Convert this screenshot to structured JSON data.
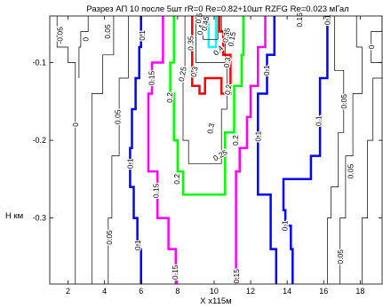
{
  "chart_data": {
    "type": "contour",
    "title": "Разрез АП 10 после 5шт rR=0 Re=0.82+10шт RZFG  Re=0.023 мГал",
    "xlabel": "X  x115м",
    "ylabel": "H  км",
    "xlim": [
      1,
      19.2
    ],
    "ylim": [
      -0.385,
      -0.04
    ],
    "xticks": [
      2,
      4,
      6,
      8,
      10,
      12,
      14,
      16,
      18
    ],
    "yticks": [
      -0.1,
      -0.2,
      -0.3
    ],
    "ytick_labels": [
      "-0.1",
      "-0.2",
      "-0.3"
    ],
    "grid": false,
    "levels": [
      {
        "value": "0.05",
        "color": "#000000",
        "width": 0.8
      },
      {
        "value": "0.1",
        "color": "#0000ff",
        "width": 2.5
      },
      {
        "value": "0.15",
        "color": "#ff00ff",
        "width": 2.5
      },
      {
        "value": "0.2",
        "color": "#00ff00",
        "width": 2.5
      },
      {
        "value": "0.25",
        "color": "#000000",
        "width": 0.8
      },
      {
        "value": "0.3",
        "color": "#ff0000",
        "width": 2.5
      },
      {
        "value": "0.35",
        "color": "#000000",
        "width": 0.8
      },
      {
        "value": "0.4",
        "color": "#000000",
        "width": 0.8
      },
      {
        "value": "0.45",
        "color": "#000000",
        "width": 0.8
      },
      {
        "value": "0.5",
        "color": "#00ffff",
        "width": 2.5
      }
    ],
    "contours": [
      {
        "level": "0",
        "color": "#000000",
        "width": 0.7,
        "points": [
          [
            1.4,
            -0.04
          ],
          [
            1.4,
            -0.08
          ],
          [
            2.0,
            -0.08
          ],
          [
            2.0,
            -0.1
          ],
          [
            2.4,
            -0.1
          ],
          [
            2.4,
            -0.385
          ]
        ]
      },
      {
        "level": "0",
        "color": "#000000",
        "width": 0.7,
        "points": [
          [
            3.1,
            -0.04
          ],
          [
            3.1,
            -0.06
          ],
          [
            2.7,
            -0.06
          ],
          [
            2.7,
            -0.08
          ],
          [
            2.6,
            -0.08
          ],
          [
            2.6,
            -0.12
          ]
        ]
      },
      {
        "level": "0.05",
        "color": "#000000",
        "width": 0.7,
        "points": [
          [
            4.5,
            -0.04
          ],
          [
            4.5,
            -0.09
          ],
          [
            3.9,
            -0.09
          ],
          [
            3.9,
            -0.14
          ],
          [
            3.3,
            -0.14
          ],
          [
            3.3,
            -0.385
          ]
        ]
      },
      {
        "level": "0.05",
        "color": "#000000",
        "width": 0.7,
        "points": [
          [
            5.3,
            -0.04
          ],
          [
            5.3,
            -0.12
          ],
          [
            4.8,
            -0.12
          ],
          [
            4.8,
            -0.22
          ],
          [
            4.4,
            -0.22
          ],
          [
            4.4,
            -0.3
          ],
          [
            4.2,
            -0.3
          ],
          [
            4.2,
            -0.385
          ]
        ]
      },
      {
        "level": "0.1",
        "color": "#0000ff",
        "width": 2.5,
        "points": [
          [
            6.0,
            -0.04
          ],
          [
            6.0,
            -0.08
          ],
          [
            5.9,
            -0.08
          ],
          [
            5.9,
            -0.12
          ],
          [
            5.7,
            -0.12
          ],
          [
            5.7,
            -0.16
          ],
          [
            5.5,
            -0.16
          ],
          [
            5.5,
            -0.21
          ],
          [
            5.4,
            -0.21
          ],
          [
            5.4,
            -0.26
          ],
          [
            5.6,
            -0.26
          ],
          [
            5.6,
            -0.3
          ],
          [
            5.8,
            -0.3
          ],
          [
            5.8,
            -0.34
          ],
          [
            6.0,
            -0.34
          ],
          [
            6.0,
            -0.385
          ]
        ]
      },
      {
        "level": "0.15",
        "color": "#ff00ff",
        "width": 2.5,
        "points": [
          [
            7.2,
            -0.04
          ],
          [
            7.2,
            -0.1
          ],
          [
            6.6,
            -0.1
          ],
          [
            6.6,
            -0.14
          ],
          [
            6.4,
            -0.14
          ],
          [
            6.4,
            -0.24
          ],
          [
            6.9,
            -0.24
          ],
          [
            6.9,
            -0.3
          ],
          [
            7.5,
            -0.3
          ],
          [
            7.5,
            -0.34
          ],
          [
            7.9,
            -0.34
          ],
          [
            7.9,
            -0.385
          ]
        ]
      },
      {
        "level": "0.2",
        "color": "#00ff00",
        "width": 2.5,
        "points": [
          [
            7.8,
            -0.04
          ],
          [
            7.8,
            -0.1
          ],
          [
            7.6,
            -0.1
          ],
          [
            7.6,
            -0.14
          ],
          [
            7.8,
            -0.14
          ],
          [
            7.8,
            -0.2
          ],
          [
            8.0,
            -0.2
          ],
          [
            8.0,
            -0.24
          ],
          [
            8.3,
            -0.24
          ],
          [
            8.3,
            -0.27
          ],
          [
            10.6,
            -0.27
          ],
          [
            10.6,
            -0.19
          ],
          [
            11.1,
            -0.19
          ],
          [
            11.1,
            -0.13
          ],
          [
            11.5,
            -0.13
          ],
          [
            11.5,
            -0.09
          ],
          [
            11.6,
            -0.09
          ],
          [
            11.6,
            -0.04
          ]
        ]
      },
      {
        "level": "0.3",
        "color": "#ff0000",
        "width": 2.5,
        "points": [
          [
            8.8,
            -0.04
          ],
          [
            8.8,
            -0.13
          ],
          [
            9.2,
            -0.13
          ],
          [
            9.2,
            -0.14
          ],
          [
            9.5,
            -0.14
          ],
          [
            9.5,
            -0.12
          ],
          [
            10.4,
            -0.12
          ],
          [
            10.4,
            -0.14
          ],
          [
            10.9,
            -0.14
          ],
          [
            10.9,
            -0.09
          ],
          [
            10.5,
            -0.09
          ],
          [
            10.5,
            -0.06
          ],
          [
            10.3,
            -0.06
          ],
          [
            10.3,
            -0.04
          ]
        ]
      },
      {
        "level": "0.5",
        "color": "#00ffff",
        "width": 2.5,
        "points": [
          [
            9.7,
            -0.04
          ],
          [
            9.7,
            -0.08
          ],
          [
            10.1,
            -0.08
          ],
          [
            10.1,
            -0.04
          ]
        ]
      },
      {
        "level": "0.15",
        "color": "#ff00ff",
        "width": 2.5,
        "points": [
          [
            12.8,
            -0.04
          ],
          [
            12.8,
            -0.08
          ],
          [
            12.4,
            -0.08
          ],
          [
            12.4,
            -0.13
          ],
          [
            12.0,
            -0.13
          ],
          [
            12.0,
            -0.17
          ],
          [
            11.8,
            -0.17
          ],
          [
            11.8,
            -0.21
          ],
          [
            11.4,
            -0.21
          ],
          [
            11.4,
            -0.24
          ],
          [
            11.2,
            -0.24
          ],
          [
            11.2,
            -0.385
          ]
        ]
      },
      {
        "level": "0.1",
        "color": "#0000ff",
        "width": 2.5,
        "points": [
          [
            13.3,
            -0.04
          ],
          [
            13.3,
            -0.09
          ],
          [
            12.9,
            -0.09
          ],
          [
            12.9,
            -0.14
          ],
          [
            12.4,
            -0.14
          ],
          [
            12.4,
            -0.27
          ],
          [
            13.1,
            -0.27
          ],
          [
            13.1,
            -0.34
          ],
          [
            13.4,
            -0.34
          ],
          [
            13.4,
            -0.385
          ]
        ]
      },
      {
        "level": "0.1",
        "color": "#0000ff",
        "width": 2.5,
        "points": [
          [
            16.2,
            -0.04
          ],
          [
            16.2,
            -0.12
          ],
          [
            15.8,
            -0.12
          ],
          [
            15.8,
            -0.22
          ],
          [
            15.3,
            -0.22
          ],
          [
            15.3,
            -0.25
          ],
          [
            13.8,
            -0.25
          ],
          [
            13.8,
            -0.29
          ],
          [
            13.9,
            -0.29
          ],
          [
            13.9,
            -0.31
          ],
          [
            14.2,
            -0.31
          ],
          [
            14.2,
            -0.34
          ],
          [
            14.3,
            -0.34
          ],
          [
            14.3,
            -0.385
          ]
        ]
      },
      {
        "level": "0.05",
        "color": "#000000",
        "width": 0.7,
        "points": [
          [
            16.6,
            -0.04
          ],
          [
            16.6,
            -0.11
          ],
          [
            17.1,
            -0.11
          ],
          [
            17.1,
            -0.19
          ],
          [
            16.8,
            -0.19
          ],
          [
            16.8,
            -0.26
          ],
          [
            16.4,
            -0.26
          ],
          [
            16.4,
            -0.3
          ],
          [
            16.2,
            -0.3
          ],
          [
            16.2,
            -0.385
          ]
        ]
      },
      {
        "level": "0.05",
        "color": "#000000",
        "width": 0.7,
        "points": [
          [
            17.8,
            -0.04
          ],
          [
            17.8,
            -0.08
          ],
          [
            18.1,
            -0.08
          ],
          [
            18.1,
            -0.14
          ],
          [
            17.6,
            -0.14
          ],
          [
            17.6,
            -0.22
          ],
          [
            17.2,
            -0.22
          ],
          [
            17.2,
            -0.3
          ],
          [
            16.9,
            -0.3
          ],
          [
            16.9,
            -0.385
          ]
        ]
      },
      {
        "level": "0",
        "color": "#000000",
        "width": 0.7,
        "points": [
          [
            19.2,
            -0.04
          ],
          [
            19.2,
            -0.06
          ],
          [
            18.6,
            -0.06
          ],
          [
            18.6,
            -0.1
          ],
          [
            19.2,
            -0.1
          ]
        ]
      },
      {
        "level": "0",
        "color": "#000000",
        "width": 0.7,
        "points": [
          [
            19.2,
            -0.12
          ],
          [
            18.7,
            -0.12
          ],
          [
            18.7,
            -0.2
          ],
          [
            18.4,
            -0.2
          ],
          [
            18.4,
            -0.3
          ],
          [
            18.1,
            -0.3
          ],
          [
            18.1,
            -0.385
          ]
        ]
      },
      {
        "level": "0.25",
        "color": "#000000",
        "width": 0.7,
        "points": [
          [
            8.4,
            -0.04
          ],
          [
            8.4,
            -0.12
          ],
          [
            8.3,
            -0.12
          ],
          [
            8.3,
            -0.2
          ],
          [
            8.6,
            -0.2
          ],
          [
            8.6,
            -0.23
          ],
          [
            10.4,
            -0.23
          ],
          [
            10.4,
            -0.16
          ],
          [
            10.7,
            -0.16
          ],
          [
            10.7,
            -0.09
          ]
        ]
      },
      {
        "level": "0.35",
        "color": "#000000",
        "width": 0.7,
        "points": [
          [
            9.0,
            -0.04
          ],
          [
            9.0,
            -0.1
          ],
          [
            10.6,
            -0.1
          ],
          [
            10.6,
            -0.06
          ],
          [
            10.4,
            -0.06
          ],
          [
            10.4,
            -0.04
          ]
        ]
      },
      {
        "level": "0.45",
        "color": "#000000",
        "width": 0.7,
        "points": [
          [
            9.4,
            -0.04
          ],
          [
            9.4,
            -0.07
          ],
          [
            10.2,
            -0.07
          ],
          [
            10.2,
            -0.04
          ]
        ]
      }
    ],
    "contour_labels": [
      {
        "text": "-0.05",
        "x": 1.6,
        "y": -0.065,
        "rot": -90
      },
      {
        "text": "0",
        "x": 3.0,
        "y": -0.07,
        "rot": -90
      },
      {
        "text": "0",
        "x": 2.45,
        "y": -0.18,
        "rot": -90
      },
      {
        "text": "0.05",
        "x": 4.2,
        "y": -0.06,
        "rot": -90
      },
      {
        "text": "0.05",
        "x": 4.75,
        "y": -0.17,
        "rot": -90
      },
      {
        "text": "0.05",
        "x": 4.3,
        "y": -0.325,
        "rot": -90
      },
      {
        "text": "0.1",
        "x": 6.1,
        "y": -0.065,
        "rot": -90
      },
      {
        "text": "0.1",
        "x": 5.45,
        "y": -0.23,
        "rot": -90
      },
      {
        "text": "0.1",
        "x": 5.85,
        "y": -0.335,
        "rot": -90
      },
      {
        "text": "0.15",
        "x": 6.6,
        "y": -0.12,
        "rot": -90
      },
      {
        "text": "0.15",
        "x": 6.85,
        "y": -0.265,
        "rot": -90
      },
      {
        "text": "0.15",
        "x": 7.9,
        "y": -0.37,
        "rot": -90
      },
      {
        "text": "0.2",
        "x": 7.6,
        "y": -0.145,
        "rot": -90
      },
      {
        "text": "0.2",
        "x": 8.0,
        "y": -0.25,
        "rot": -90
      },
      {
        "text": "0.25",
        "x": 8.3,
        "y": -0.115,
        "rot": -80
      },
      {
        "text": "0.3",
        "x": 8.95,
        "y": -0.112,
        "rot": -80
      },
      {
        "text": "0.35",
        "x": 8.75,
        "y": -0.075,
        "rot": -90
      },
      {
        "text": "0.4",
        "x": 9.3,
        "y": -0.058,
        "rot": -80
      },
      {
        "text": "0.45",
        "x": 9.55,
        "y": -0.05,
        "rot": -80
      },
      {
        "text": "0.5",
        "x": 9.2,
        "y": -0.043,
        "rot": -80
      },
      {
        "text": "0.4",
        "x": 10.25,
        "y": -0.085,
        "rot": -45
      },
      {
        "text": "0.35",
        "x": 10.7,
        "y": -0.065,
        "rot": -80
      },
      {
        "text": "0.3",
        "x": 10.75,
        "y": -0.1,
        "rot": -80
      },
      {
        "text": "0.2",
        "x": 10.8,
        "y": -0.135,
        "rot": -80
      },
      {
        "text": "0.15",
        "x": 11.0,
        "y": -0.07,
        "rot": -80
      },
      {
        "text": "0.3",
        "x": 9.85,
        "y": -0.185,
        "rot": -80
      },
      {
        "text": "0.25",
        "x": 10.35,
        "y": -0.22,
        "rot": -30
      },
      {
        "text": "0.2",
        "x": 11.2,
        "y": -0.2,
        "rot": -90
      },
      {
        "text": "0.15",
        "x": 11.25,
        "y": -0.375,
        "rot": -90
      },
      {
        "text": "0.1",
        "x": 12.9,
        "y": -0.11,
        "rot": -90
      },
      {
        "text": "0.1",
        "x": 12.45,
        "y": -0.195,
        "rot": -90
      },
      {
        "text": "0.15",
        "x": 14.7,
        "y": -0.045,
        "rot": -90
      },
      {
        "text": "0.1",
        "x": 16.25,
        "y": -0.045,
        "rot": -90
      },
      {
        "text": "0.1",
        "x": 15.75,
        "y": -0.175,
        "rot": -90
      },
      {
        "text": "0.1",
        "x": 13.9,
        "y": -0.31,
        "rot": -90
      },
      {
        "text": "0.05",
        "x": 17.15,
        "y": -0.15,
        "rot": -90
      },
      {
        "text": "0.05",
        "x": 17.5,
        "y": -0.24,
        "rot": -90
      },
      {
        "text": "0.05",
        "x": 16.95,
        "y": -0.35,
        "rot": -90
      },
      {
        "text": "0",
        "x": 18.65,
        "y": -0.08,
        "rot": -90
      }
    ]
  }
}
